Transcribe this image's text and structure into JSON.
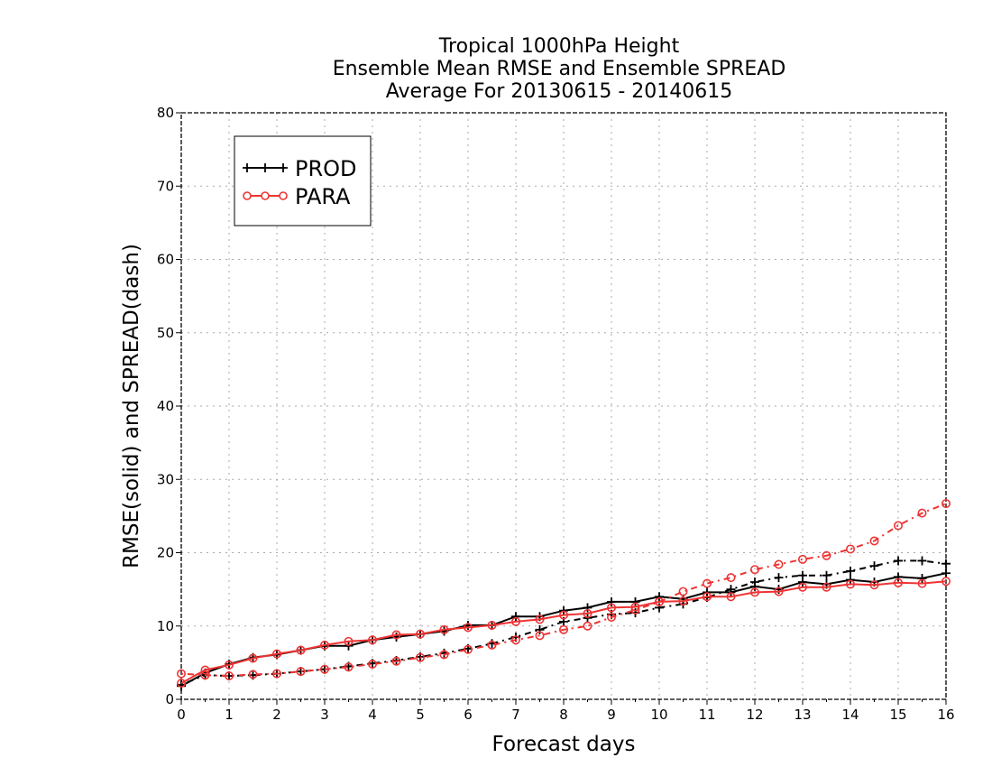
{
  "chart_data": {
    "type": "line",
    "title": [
      "Tropical 1000hPa Height",
      "Ensemble Mean RMSE and Ensemble SPREAD",
      "Average For 20130615 - 20140615"
    ],
    "xlabel": "Forecast days",
    "ylabel": "RMSE(solid) and SPREAD(dash)",
    "xlim": [
      0,
      16
    ],
    "ylim": [
      0,
      80
    ],
    "xticks": [
      0,
      1,
      2,
      3,
      4,
      5,
      6,
      7,
      8,
      9,
      10,
      11,
      12,
      13,
      14,
      15,
      16
    ],
    "yticks": [
      0,
      10,
      20,
      30,
      40,
      50,
      60,
      70,
      80
    ],
    "grid": true,
    "legend_position": "top-left",
    "x": [
      0,
      0.5,
      1,
      1.5,
      2,
      2.5,
      3,
      3.5,
      4,
      4.5,
      5,
      5.5,
      6,
      6.5,
      7,
      7.5,
      8,
      8.5,
      9,
      9.5,
      10,
      10.5,
      11,
      11.5,
      12,
      12.5,
      13,
      13.5,
      14,
      14.5,
      15,
      15.5,
      16
    ],
    "series": [
      {
        "name": "PROD",
        "color": "#000000",
        "marker": "plus",
        "rmse": [
          1.8,
          3.6,
          4.8,
          5.7,
          6.1,
          6.7,
          7.3,
          7.3,
          8.1,
          8.5,
          8.9,
          9.3,
          10.1,
          10.1,
          11.3,
          11.3,
          12.1,
          12.5,
          13.3,
          13.3,
          14.0,
          13.7,
          14.6,
          14.6,
          15.4,
          15.0,
          16.0,
          15.7,
          16.3,
          16.0,
          16.7,
          16.5,
          17.2
        ],
        "spread": [
          2.0,
          3.3,
          3.2,
          3.3,
          3.5,
          3.8,
          4.1,
          4.5,
          4.9,
          5.3,
          5.8,
          6.3,
          6.9,
          7.6,
          8.5,
          9.5,
          10.6,
          11.1,
          11.6,
          11.8,
          12.5,
          13.0,
          13.9,
          15.0,
          16.0,
          16.6,
          16.9,
          16.9,
          17.5,
          18.2,
          18.9,
          18.9,
          18.5
        ]
      },
      {
        "name": "PARA",
        "color": "#ee3333",
        "marker": "circle",
        "rmse": [
          2.2,
          4.0,
          4.7,
          5.6,
          6.2,
          6.7,
          7.4,
          7.9,
          8.1,
          8.8,
          8.9,
          9.5,
          9.8,
          10.1,
          10.6,
          10.9,
          11.5,
          11.7,
          12.5,
          12.6,
          13.3,
          13.4,
          14.0,
          14.0,
          14.6,
          14.7,
          15.3,
          15.3,
          15.7,
          15.6,
          15.9,
          15.8,
          16.1
        ],
        "spread": [
          3.5,
          3.3,
          3.2,
          3.4,
          3.5,
          3.8,
          4.1,
          4.4,
          4.8,
          5.2,
          5.7,
          6.1,
          6.8,
          7.4,
          8.1,
          8.7,
          9.5,
          10.0,
          11.2,
          12.2,
          13.3,
          14.7,
          15.8,
          16.6,
          17.7,
          18.4,
          19.1,
          19.6,
          20.5,
          21.6,
          23.7,
          25.4,
          26.7
        ]
      }
    ]
  }
}
